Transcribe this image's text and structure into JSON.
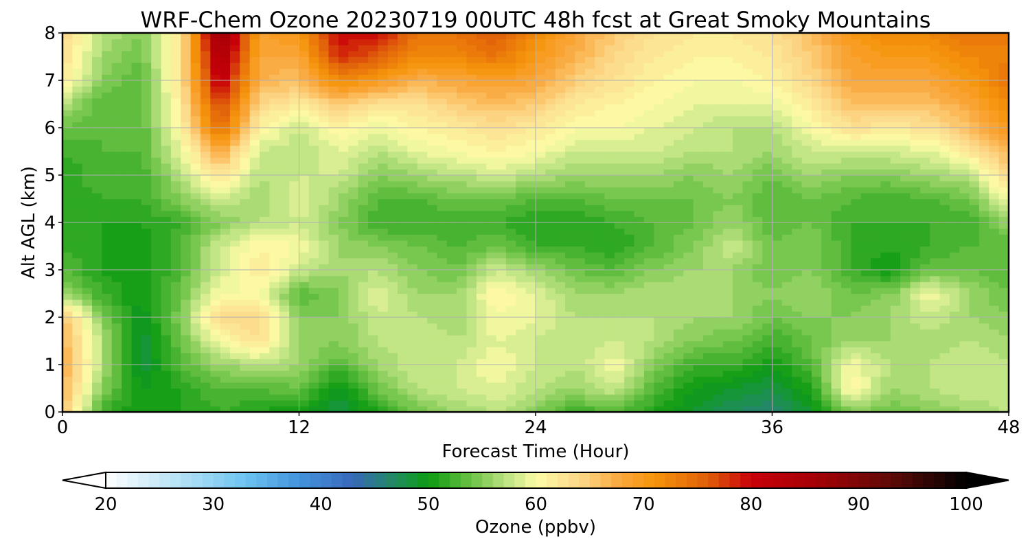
{
  "chart_data": {
    "type": "heatmap",
    "title": "WRF-Chem Ozone  20230719 00UTC 48h fcst at Great Smoky Mountains",
    "xlabel": "Forecast Time (Hour)",
    "ylabel": "Alt AGL (km)",
    "xlim": [
      0,
      48
    ],
    "ylim": [
      0,
      8
    ],
    "xticks": [
      0,
      12,
      24,
      36,
      48
    ],
    "yticks": [
      0,
      1,
      2,
      3,
      4,
      5,
      6,
      7,
      8
    ],
    "grid": true,
    "x": [
      0,
      2,
      4,
      6,
      8,
      10,
      12,
      14,
      16,
      18,
      20,
      22,
      24,
      26,
      28,
      30,
      32,
      34,
      36,
      38,
      40,
      42,
      44,
      46,
      48
    ],
    "y": [
      0,
      0.5,
      1,
      1.5,
      2,
      2.5,
      3,
      3.5,
      4,
      4.5,
      5,
      5.5,
      6,
      6.5,
      7,
      7.5,
      8
    ],
    "z": [
      [
        66,
        52,
        50,
        51,
        52,
        51,
        50,
        48,
        51,
        54,
        56,
        57,
        55,
        52,
        53,
        51,
        49,
        47,
        46,
        49,
        55,
        54,
        55,
        56,
        57
      ],
      [
        67,
        55,
        50,
        51,
        53,
        53,
        54,
        49,
        54,
        57,
        58,
        59,
        57,
        56,
        58,
        53,
        50,
        49,
        48,
        51,
        61,
        56,
        57,
        58,
        58
      ],
      [
        68,
        57,
        48,
        53,
        56,
        57,
        56,
        53,
        56,
        58,
        58,
        60,
        58,
        57,
        60,
        55,
        52,
        52,
        50,
        53,
        60,
        57,
        57,
        58,
        57
      ],
      [
        67,
        57,
        48,
        54,
        60,
        63,
        56,
        55,
        57,
        58,
        57,
        59,
        58,
        57,
        58,
        57,
        55,
        54,
        52,
        54,
        56,
        56,
        56,
        57,
        56
      ],
      [
        66,
        55,
        49,
        55,
        64,
        64,
        55,
        55,
        58,
        57,
        56,
        60,
        59,
        57,
        57,
        57,
        56,
        56,
        54,
        55,
        55,
        56,
        58,
        56,
        55
      ],
      [
        56,
        52,
        50,
        54,
        60,
        60,
        53,
        55,
        59,
        56,
        56,
        61,
        59,
        56,
        56,
        57,
        57,
        56,
        55,
        56,
        54,
        55,
        60,
        56,
        54
      ],
      [
        53,
        51,
        50,
        53,
        58,
        62,
        58,
        56,
        57,
        55,
        54,
        58,
        56,
        54,
        53,
        55,
        56,
        56,
        54,
        55,
        52,
        50,
        54,
        54,
        53
      ],
      [
        52,
        51,
        50,
        53,
        58,
        61,
        60,
        56,
        55,
        54,
        53,
        54,
        52,
        52,
        51,
        53,
        55,
        58,
        54,
        55,
        52,
        51,
        52,
        53,
        53
      ],
      [
        51,
        51,
        51,
        52,
        55,
        57,
        58,
        55,
        52,
        52,
        52,
        52,
        51,
        51,
        52,
        53,
        54,
        56,
        53,
        54,
        52,
        52,
        52,
        52,
        56
      ],
      [
        51,
        52,
        52,
        55,
        58,
        56,
        59,
        56,
        53,
        53,
        54,
        54,
        53,
        53,
        54,
        54,
        54,
        55,
        53,
        54,
        53,
        52,
        53,
        54,
        60
      ],
      [
        51,
        53,
        52,
        57,
        63,
        57,
        58,
        58,
        55,
        56,
        57,
        58,
        57,
        56,
        56,
        56,
        55,
        56,
        54,
        56,
        55,
        55,
        56,
        57,
        64
      ],
      [
        52,
        53,
        53,
        59,
        68,
        58,
        57,
        59,
        57,
        59,
        60,
        61,
        60,
        58,
        58,
        58,
        57,
        57,
        56,
        58,
        58,
        58,
        59,
        62,
        67
      ],
      [
        54,
        53,
        53,
        61,
        75,
        61,
        58,
        61,
        59,
        61,
        62,
        63,
        62,
        60,
        60,
        59,
        58,
        57,
        57,
        60,
        63,
        62,
        63,
        66,
        70
      ],
      [
        57,
        53,
        53,
        62,
        78,
        64,
        62,
        65,
        63,
        63,
        65,
        66,
        65,
        62,
        61,
        60,
        59,
        59,
        59,
        62,
        66,
        66,
        66,
        68,
        72
      ],
      [
        62,
        55,
        53,
        63,
        82,
        67,
        66,
        72,
        70,
        67,
        68,
        69,
        68,
        65,
        63,
        61,
        60,
        60,
        61,
        64,
        68,
        68,
        68,
        70,
        74
      ],
      [
        63,
        56,
        54,
        63,
        85,
        68,
        68,
        78,
        76,
        72,
        72,
        74,
        70,
        67,
        64,
        62,
        61,
        61,
        62,
        65,
        69,
        70,
        70,
        72,
        73
      ],
      [
        64,
        57,
        55,
        62,
        88,
        69,
        70,
        80,
        80,
        74,
        74,
        76,
        72,
        68,
        65,
        63,
        62,
        62,
        63,
        66,
        70,
        72,
        72,
        74,
        73
      ]
    ],
    "colorbar": {
      "label": "Ozone  (ppbv)",
      "min": 20,
      "max": 100,
      "step": 1,
      "extend": "both",
      "ticks": [
        20,
        30,
        40,
        50,
        60,
        70,
        80,
        90,
        100
      ],
      "orientation": "horizontal",
      "placement": "bottom"
    },
    "colormap": [
      [
        20,
        "#ffffff"
      ],
      [
        28,
        "#a9dcf5"
      ],
      [
        33,
        "#6cc3f0"
      ],
      [
        38,
        "#4393dc"
      ],
      [
        43,
        "#3868b8"
      ],
      [
        48,
        "#1a9446"
      ],
      [
        50,
        "#0b9a10"
      ],
      [
        54,
        "#6cc245"
      ],
      [
        57,
        "#b6e07e"
      ],
      [
        60,
        "#fcfca6"
      ],
      [
        64,
        "#fcd98a"
      ],
      [
        68,
        "#faa63a"
      ],
      [
        71,
        "#f5940a"
      ],
      [
        76,
        "#e05f0a"
      ],
      [
        80,
        "#c80008"
      ],
      [
        86,
        "#a50006"
      ],
      [
        93,
        "#5e0a07"
      ],
      [
        100,
        "#000000"
      ]
    ]
  }
}
